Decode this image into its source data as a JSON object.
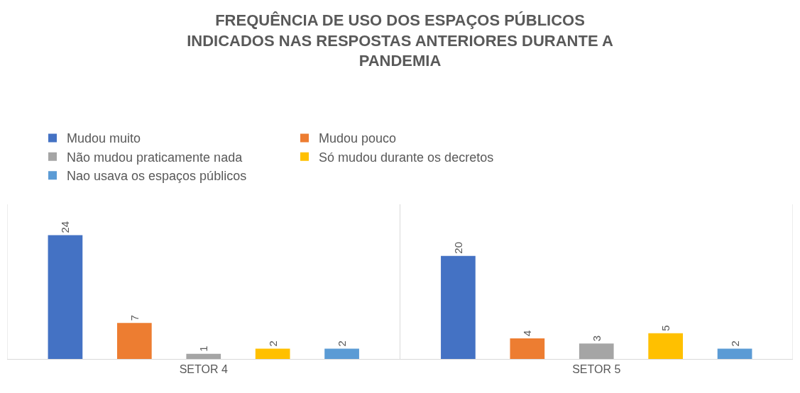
{
  "chart_data": {
    "type": "bar",
    "title": "FREQUÊNCIA DE USO DOS ESPAÇOS PÚBLICOS INDICADOS NAS RESPOSTAS ANTERIORES DURANTE A PANDEMIA",
    "categories": [
      "SETOR 4",
      "SETOR 5"
    ],
    "series": [
      {
        "name": "Mudou muito",
        "color": "#4472c4",
        "values": [
          24,
          20
        ]
      },
      {
        "name": "Mudou pouco",
        "color": "#ed7d31",
        "values": [
          7,
          4
        ]
      },
      {
        "name": "Não mudou praticamente nada",
        "color": "#a5a5a5",
        "values": [
          1,
          3
        ]
      },
      {
        "name": "Só mudou durante os decretos",
        "color": "#ffc000",
        "values": [
          2,
          5
        ]
      },
      {
        "name": "Nao usava os espaços públicos",
        "color": "#5b9bd5",
        "values": [
          2,
          2
        ]
      }
    ],
    "data_labels": true,
    "legend": "top",
    "grid": "x",
    "tick_labels": "x"
  }
}
